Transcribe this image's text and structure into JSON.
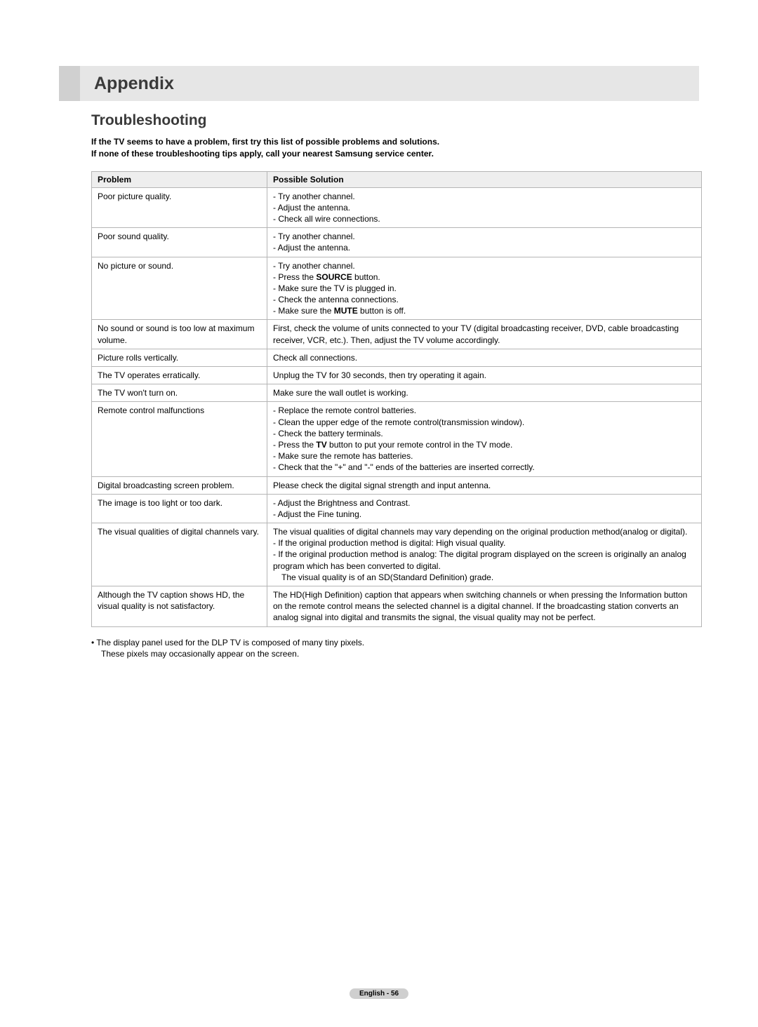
{
  "band_title": "Appendix",
  "section_title": "Troubleshooting",
  "intro_line1": "If the TV seems to have a problem, first try this list of possible problems and solutions.",
  "intro_line2": "If none of these troubleshooting tips apply, call your nearest Samsung service center.",
  "headers": {
    "problem": "Problem",
    "solution": "Possible Solution"
  },
  "rows": [
    {
      "problem": "Poor picture quality.",
      "solution_list": [
        "Try another channel.",
        "Adjust the antenna.",
        "Check all wire connections."
      ]
    },
    {
      "problem": "Poor sound quality.",
      "solution_list": [
        "Try another channel.",
        "Adjust the antenna."
      ]
    },
    {
      "problem": "No picture or sound.",
      "solution_html": "<ul class=\"sol\"><li>Try another channel.</li><li>Press the <span class=\"bold\">SOURCE</span> button.</li><li>Make sure the TV is plugged in.</li><li>Check the antenna connections.</li><li>Make sure the <span class=\"bold\">MUTE</span> button is off.</li></ul>"
    },
    {
      "problem": "No sound or sound is too low at maximum volume.",
      "solution_text": "First, check the volume of units connected to your TV (digital broadcasting receiver, DVD, cable broadcasting receiver, VCR, etc.). Then, adjust the TV volume accordingly."
    },
    {
      "problem": "Picture rolls vertically.",
      "solution_text": "Check all connections."
    },
    {
      "problem": "The TV operates erratically.",
      "solution_text": "Unplug the TV for 30 seconds, then try operating it again."
    },
    {
      "problem": "The TV won't turn on.",
      "solution_text": "Make sure the wall outlet is working."
    },
    {
      "problem": "Remote control malfunctions",
      "solution_html": "<ul class=\"sol\"><li>Replace the remote control batteries.</li><li>Clean the upper edge of the remote control(transmission window).</li><li>Check the battery terminals.</li><li>Press the <span class=\"bold\">TV</span> button to put your remote control in the TV mode.</li><li>Make sure the remote has batteries.</li><li>Check that the \"+\" and \"-\" ends of the batteries are inserted correctly.</li></ul>"
    },
    {
      "problem": "Digital broadcasting screen problem.",
      "solution_text": "Please check the digital signal strength and input antenna."
    },
    {
      "problem": "The image is too light or too dark.",
      "solution_list": [
        "Adjust the Brightness and Contrast.",
        "Adjust the Fine tuning."
      ]
    },
    {
      "problem": "The visual qualities of digital channels vary.",
      "solution_html": "The visual qualities of digital channels may vary depending on the original production method(analog or digital).<ul class=\"sol\"><li>If the original production method is digital: High visual quality.</li><li>If the original production method is analog: The digital program displayed on the screen is originally an analog program which has been converted to digital.</li><li class=\"indent\">The visual quality is of an SD(Standard Definition) grade.</li></ul>"
    },
    {
      "problem": "Although the TV caption shows HD, the visual quality is not satisfactory.",
      "solution_text": "The HD(High Definition) caption that appears when switching channels or when pressing the Information button on the remote control means the selected channel is a digital channel. If the broadcasting station converts an analog signal into digital and transmits the signal, the visual quality may not be perfect."
    }
  ],
  "footnote_line1": "The display panel used for the DLP TV is composed of many tiny pixels.",
  "footnote_line2": "These pixels may occasionally appear on the screen.",
  "footer": "English - 56"
}
